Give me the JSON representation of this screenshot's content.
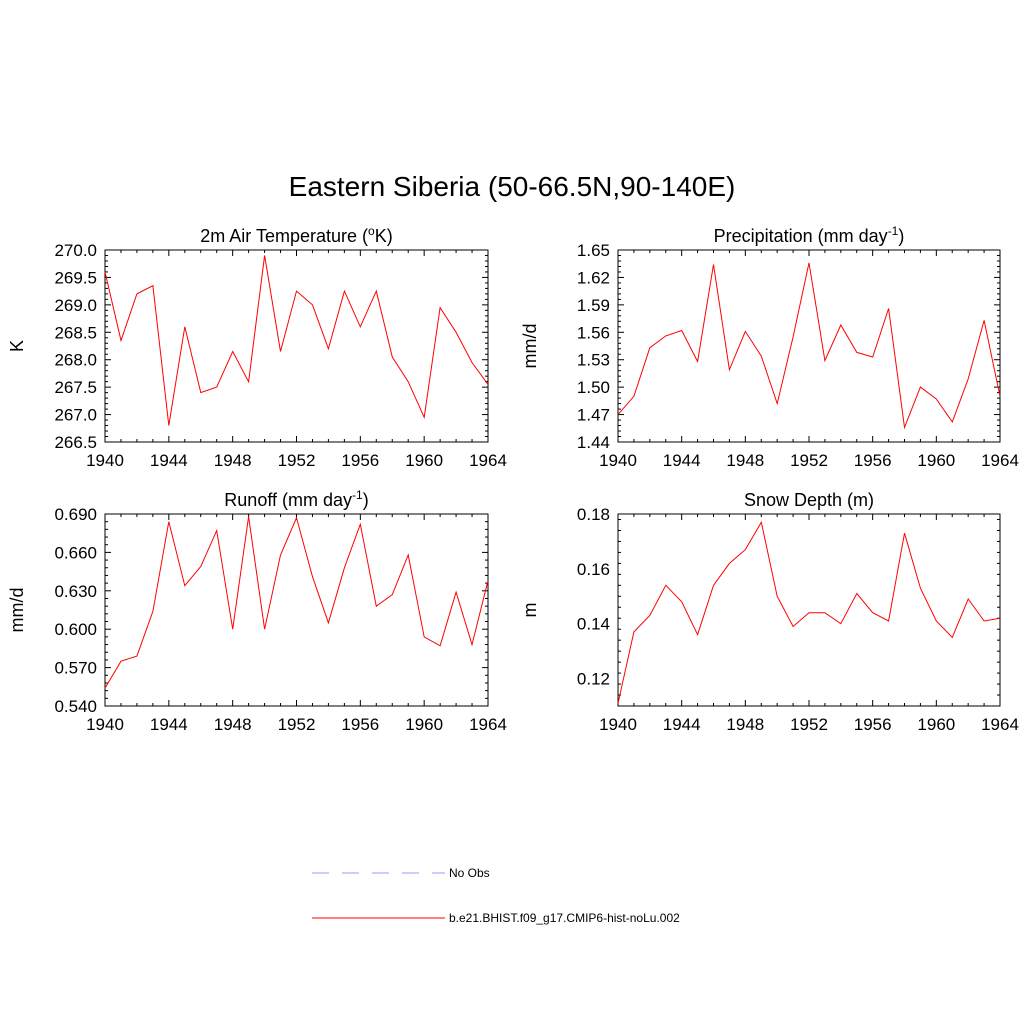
{
  "title": "Eastern Siberia (50-66.5N,90-140E)",
  "colors": {
    "model": "#ff0000",
    "obs": "#9999ff",
    "axis": "#000000"
  },
  "legend": [
    {
      "label": "No Obs",
      "style": "dashed",
      "color": "#9999ff"
    },
    {
      "label": "b.e21.BHIST.f09_g17.CMIP6-hist-noLu.002",
      "style": "solid",
      "color": "#ff0000"
    }
  ],
  "chart_data": [
    {
      "type": "line",
      "title": "2m Air Temperature (",
      "title_sup": "o",
      "title_after": "K)",
      "ylabel": "K",
      "xlim": [
        1940,
        1964
      ],
      "ylim": [
        266.5,
        270.0
      ],
      "xticks": [
        "1940",
        "1944",
        "1948",
        "1952",
        "1956",
        "1960",
        "1964"
      ],
      "yticks": [
        "266.5",
        "267.0",
        "267.5",
        "268.0",
        "268.5",
        "269.0",
        "269.5",
        "270.0"
      ],
      "series": [
        {
          "x": [
            1940,
            1941,
            1942,
            1943,
            1944,
            1945,
            1946,
            1947,
            1948,
            1949,
            1950,
            1951,
            1952,
            1953,
            1954,
            1955,
            1956,
            1957,
            1958,
            1959,
            1960,
            1961,
            1962,
            1963,
            1964
          ],
          "y": [
            269.6,
            268.35,
            269.2,
            269.35,
            266.8,
            268.6,
            267.4,
            267.5,
            268.15,
            267.6,
            269.9,
            268.15,
            269.25,
            269.0,
            268.2,
            269.25,
            268.6,
            269.25,
            268.05,
            267.6,
            266.95,
            268.95,
            268.5,
            267.95,
            267.55
          ]
        }
      ]
    },
    {
      "type": "line",
      "title": "Precipitation (mm day",
      "title_sup": "-1",
      "title_after": ")",
      "ylabel": "mm/d",
      "xlim": [
        1940,
        1964
      ],
      "ylim": [
        1.44,
        1.65
      ],
      "xticks": [
        "1940",
        "1944",
        "1948",
        "1952",
        "1956",
        "1960",
        "1964"
      ],
      "yticks": [
        "1.44",
        "1.47",
        "1.50",
        "1.53",
        "1.56",
        "1.59",
        "1.62",
        "1.65"
      ],
      "series": [
        {
          "x": [
            1940,
            1941,
            1942,
            1943,
            1944,
            1945,
            1946,
            1947,
            1948,
            1949,
            1950,
            1951,
            1952,
            1953,
            1954,
            1955,
            1956,
            1957,
            1958,
            1959,
            1960,
            1961,
            1962,
            1963,
            1964
          ],
          "y": [
            1.47,
            1.49,
            1.543,
            1.556,
            1.562,
            1.528,
            1.634,
            1.519,
            1.561,
            1.534,
            1.482,
            1.555,
            1.636,
            1.529,
            1.568,
            1.538,
            1.533,
            1.586,
            1.456,
            1.5,
            1.487,
            1.462,
            1.509,
            1.573,
            1.49
          ]
        }
      ]
    },
    {
      "type": "line",
      "title": "Runoff (mm day",
      "title_sup": "-1",
      "title_after": ")",
      "ylabel": "mm/d",
      "xlim": [
        1940,
        1964
      ],
      "ylim": [
        0.54,
        0.69
      ],
      "xticks": [
        "1940",
        "1944",
        "1948",
        "1952",
        "1956",
        "1960",
        "1964"
      ],
      "yticks": [
        "0.540",
        "0.570",
        "0.600",
        "0.630",
        "0.660",
        "0.690"
      ],
      "series": [
        {
          "x": [
            1940,
            1941,
            1942,
            1943,
            1944,
            1945,
            1946,
            1947,
            1948,
            1949,
            1950,
            1951,
            1952,
            1953,
            1954,
            1955,
            1956,
            1957,
            1958,
            1959,
            1960,
            1961,
            1962,
            1963,
            1964
          ],
          "y": [
            0.554,
            0.575,
            0.579,
            0.614,
            0.684,
            0.634,
            0.649,
            0.677,
            0.6,
            0.688,
            0.6,
            0.658,
            0.687,
            0.641,
            0.605,
            0.648,
            0.682,
            0.618,
            0.627,
            0.658,
            0.594,
            0.587,
            0.629,
            0.588,
            0.638
          ]
        }
      ]
    },
    {
      "type": "line",
      "title": "Snow Depth (m)",
      "title_sup": "",
      "title_after": "",
      "ylabel": "m",
      "xlim": [
        1940,
        1964
      ],
      "ylim": [
        0.11,
        0.18
      ],
      "xticks": [
        "1940",
        "1944",
        "1948",
        "1952",
        "1956",
        "1960",
        "1964"
      ],
      "yticks": [
        "0.12",
        "0.14",
        "0.16",
        "0.18"
      ],
      "series": [
        {
          "x": [
            1940,
            1941,
            1942,
            1943,
            1944,
            1945,
            1946,
            1947,
            1948,
            1949,
            1950,
            1951,
            1952,
            1953,
            1954,
            1955,
            1956,
            1957,
            1958,
            1959,
            1960,
            1961,
            1962,
            1963,
            1964
          ],
          "y": [
            0.111,
            0.137,
            0.143,
            0.154,
            0.148,
            0.136,
            0.154,
            0.162,
            0.167,
            0.177,
            0.15,
            0.139,
            0.144,
            0.144,
            0.14,
            0.151,
            0.144,
            0.141,
            0.173,
            0.153,
            0.141,
            0.135,
            0.149,
            0.141,
            0.142
          ]
        }
      ]
    }
  ]
}
